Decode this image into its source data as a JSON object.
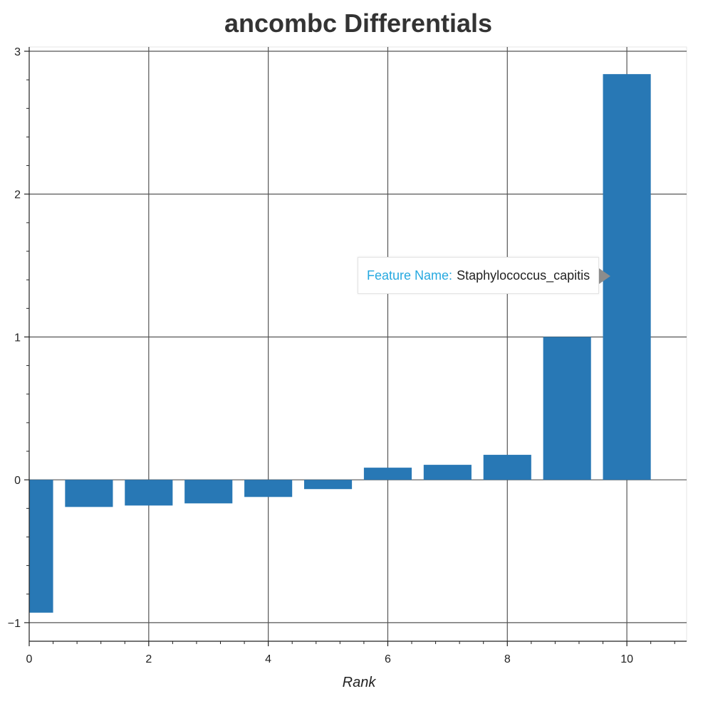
{
  "chart_data": {
    "type": "bar",
    "title": "ancombc Differentials",
    "xlabel": "Rank",
    "ylabel": "",
    "x": [
      0,
      1,
      2,
      3,
      4,
      5,
      6,
      7,
      8,
      9,
      10
    ],
    "values": [
      -0.93,
      -0.19,
      -0.18,
      -0.165,
      -0.12,
      -0.065,
      0.085,
      0.105,
      0.175,
      1.0,
      2.84
    ],
    "xlim": [
      0,
      11
    ],
    "ylim": [
      -1.13,
      3.03
    ],
    "x_ticks": [
      0,
      2,
      4,
      6,
      8,
      10
    ],
    "y_ticks": [
      -1,
      0,
      1,
      2,
      3
    ],
    "x_tick_labels": [
      "0",
      "2",
      "4",
      "6",
      "8",
      "10"
    ],
    "y_tick_labels": [
      "−1",
      "0",
      "1",
      "2",
      "3"
    ],
    "grid": true,
    "bar_color": "#2878b5",
    "grid_color": "#555555"
  },
  "tooltip": {
    "key": "Feature Name:",
    "value": "Staphylococcus_capitis",
    "key_color": "#26a9e0"
  }
}
